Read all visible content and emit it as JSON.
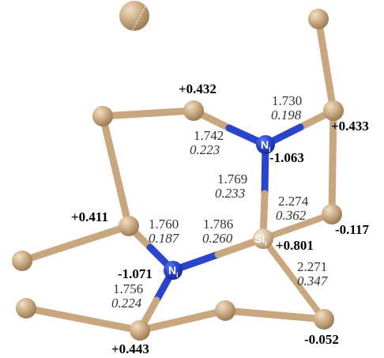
{
  "colors": {
    "carbon": "#c8a77f",
    "carbon_dark": "#8a6d4b",
    "carbon_light": "#eedbc0",
    "nitrogen": "#2742c9",
    "silicon": "#d9bfa0",
    "bond_carbon": "#c8a77f",
    "bond_nitrogen": "#2a45cc"
  },
  "atoms": {
    "si": {
      "element": "Si",
      "sub": "i"
    },
    "n_top": {
      "element": "N",
      "sub": "i"
    },
    "n_left": {
      "element": "N",
      "sub": "i"
    }
  },
  "bond_labels": {
    "ntop_c": {
      "length": "1.742",
      "wbi": "0.223"
    },
    "ntop_cright": {
      "length": "1.730",
      "wbi": "0.198"
    },
    "ntop_si": {
      "length": "1.769",
      "wbi": "0.233"
    },
    "si_cmid": {
      "length": "2.274",
      "wbi": "0.362"
    },
    "nleft_c": {
      "length": "1.760",
      "wbi": "0.187"
    },
    "nleft_si": {
      "length": "1.786",
      "wbi": "0.260"
    },
    "si_cbottom": {
      "length": "2.271",
      "wbi": "0.347"
    },
    "nleft_cbottom": {
      "length": "1.756",
      "wbi": "0.224"
    }
  },
  "charges": {
    "c_top": "+0.432",
    "c_right_top": "+0.433",
    "n_top": "-1.063",
    "c_left": "+0.411",
    "c_right_mid": "-0.117",
    "si": "+0.801",
    "n_left": "-1.071",
    "c_bottom_left": "+0.443",
    "c_bottom_right": "-0.052"
  }
}
